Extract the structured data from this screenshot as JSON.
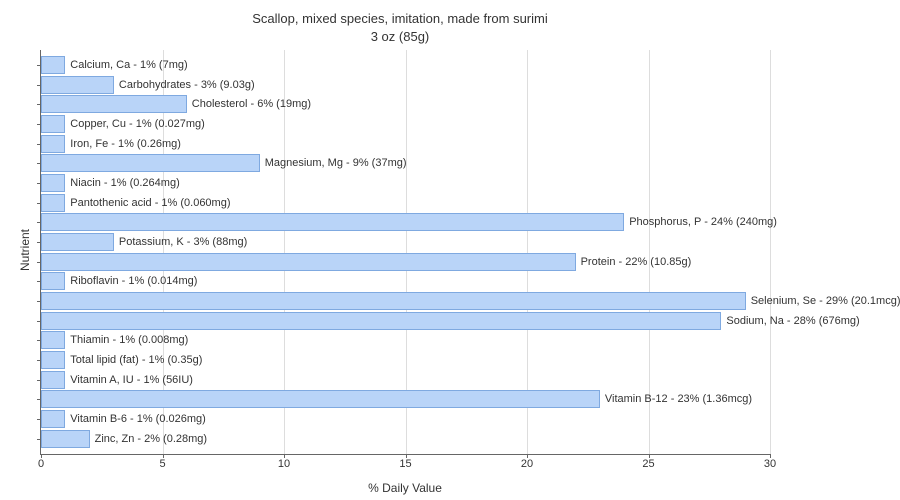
{
  "chart": {
    "type": "bar-horizontal",
    "title_line1": "Scallop, mixed species, imitation, made from surimi",
    "title_line2": "3 oz (85g)",
    "title_fontsize": 13,
    "title_color": "#333333",
    "x_axis_label": "% Daily Value",
    "y_axis_label": "Nutrient",
    "axis_label_fontsize": 12,
    "tick_fontsize": 11,
    "bar_label_fontsize": 11,
    "xlim_min": 0,
    "xlim_max": 30,
    "x_tick_step": 5,
    "x_ticks": [
      0,
      5,
      10,
      15,
      20,
      25,
      30
    ],
    "background_color": "#ffffff",
    "grid_color": "#dddddd",
    "axis_color": "#666666",
    "bar_fill": "#b9d4f8",
    "bar_border": "#7fa9e0",
    "bar_label_color": "#333333",
    "bars": [
      {
        "label": "Calcium, Ca - 1% (7mg)",
        "value": 1
      },
      {
        "label": "Carbohydrates - 3% (9.03g)",
        "value": 3
      },
      {
        "label": "Cholesterol - 6% (19mg)",
        "value": 6
      },
      {
        "label": "Copper, Cu - 1% (0.027mg)",
        "value": 1
      },
      {
        "label": "Iron, Fe - 1% (0.26mg)",
        "value": 1
      },
      {
        "label": "Magnesium, Mg - 9% (37mg)",
        "value": 9
      },
      {
        "label": "Niacin - 1% (0.264mg)",
        "value": 1
      },
      {
        "label": "Pantothenic acid - 1% (0.060mg)",
        "value": 1
      },
      {
        "label": "Phosphorus, P - 24% (240mg)",
        "value": 24
      },
      {
        "label": "Potassium, K - 3% (88mg)",
        "value": 3
      },
      {
        "label": "Protein - 22% (10.85g)",
        "value": 22
      },
      {
        "label": "Riboflavin - 1% (0.014mg)",
        "value": 1
      },
      {
        "label": "Selenium, Se - 29% (20.1mcg)",
        "value": 29
      },
      {
        "label": "Sodium, Na - 28% (676mg)",
        "value": 28
      },
      {
        "label": "Thiamin - 1% (0.008mg)",
        "value": 1
      },
      {
        "label": "Total lipid (fat) - 1% (0.35g)",
        "value": 1
      },
      {
        "label": "Vitamin A, IU - 1% (56IU)",
        "value": 1
      },
      {
        "label": "Vitamin B-12 - 23% (1.36mcg)",
        "value": 23
      },
      {
        "label": "Vitamin B-6 - 1% (0.026mg)",
        "value": 1
      },
      {
        "label": "Zinc, Zn - 2% (0.28mg)",
        "value": 2
      }
    ]
  }
}
